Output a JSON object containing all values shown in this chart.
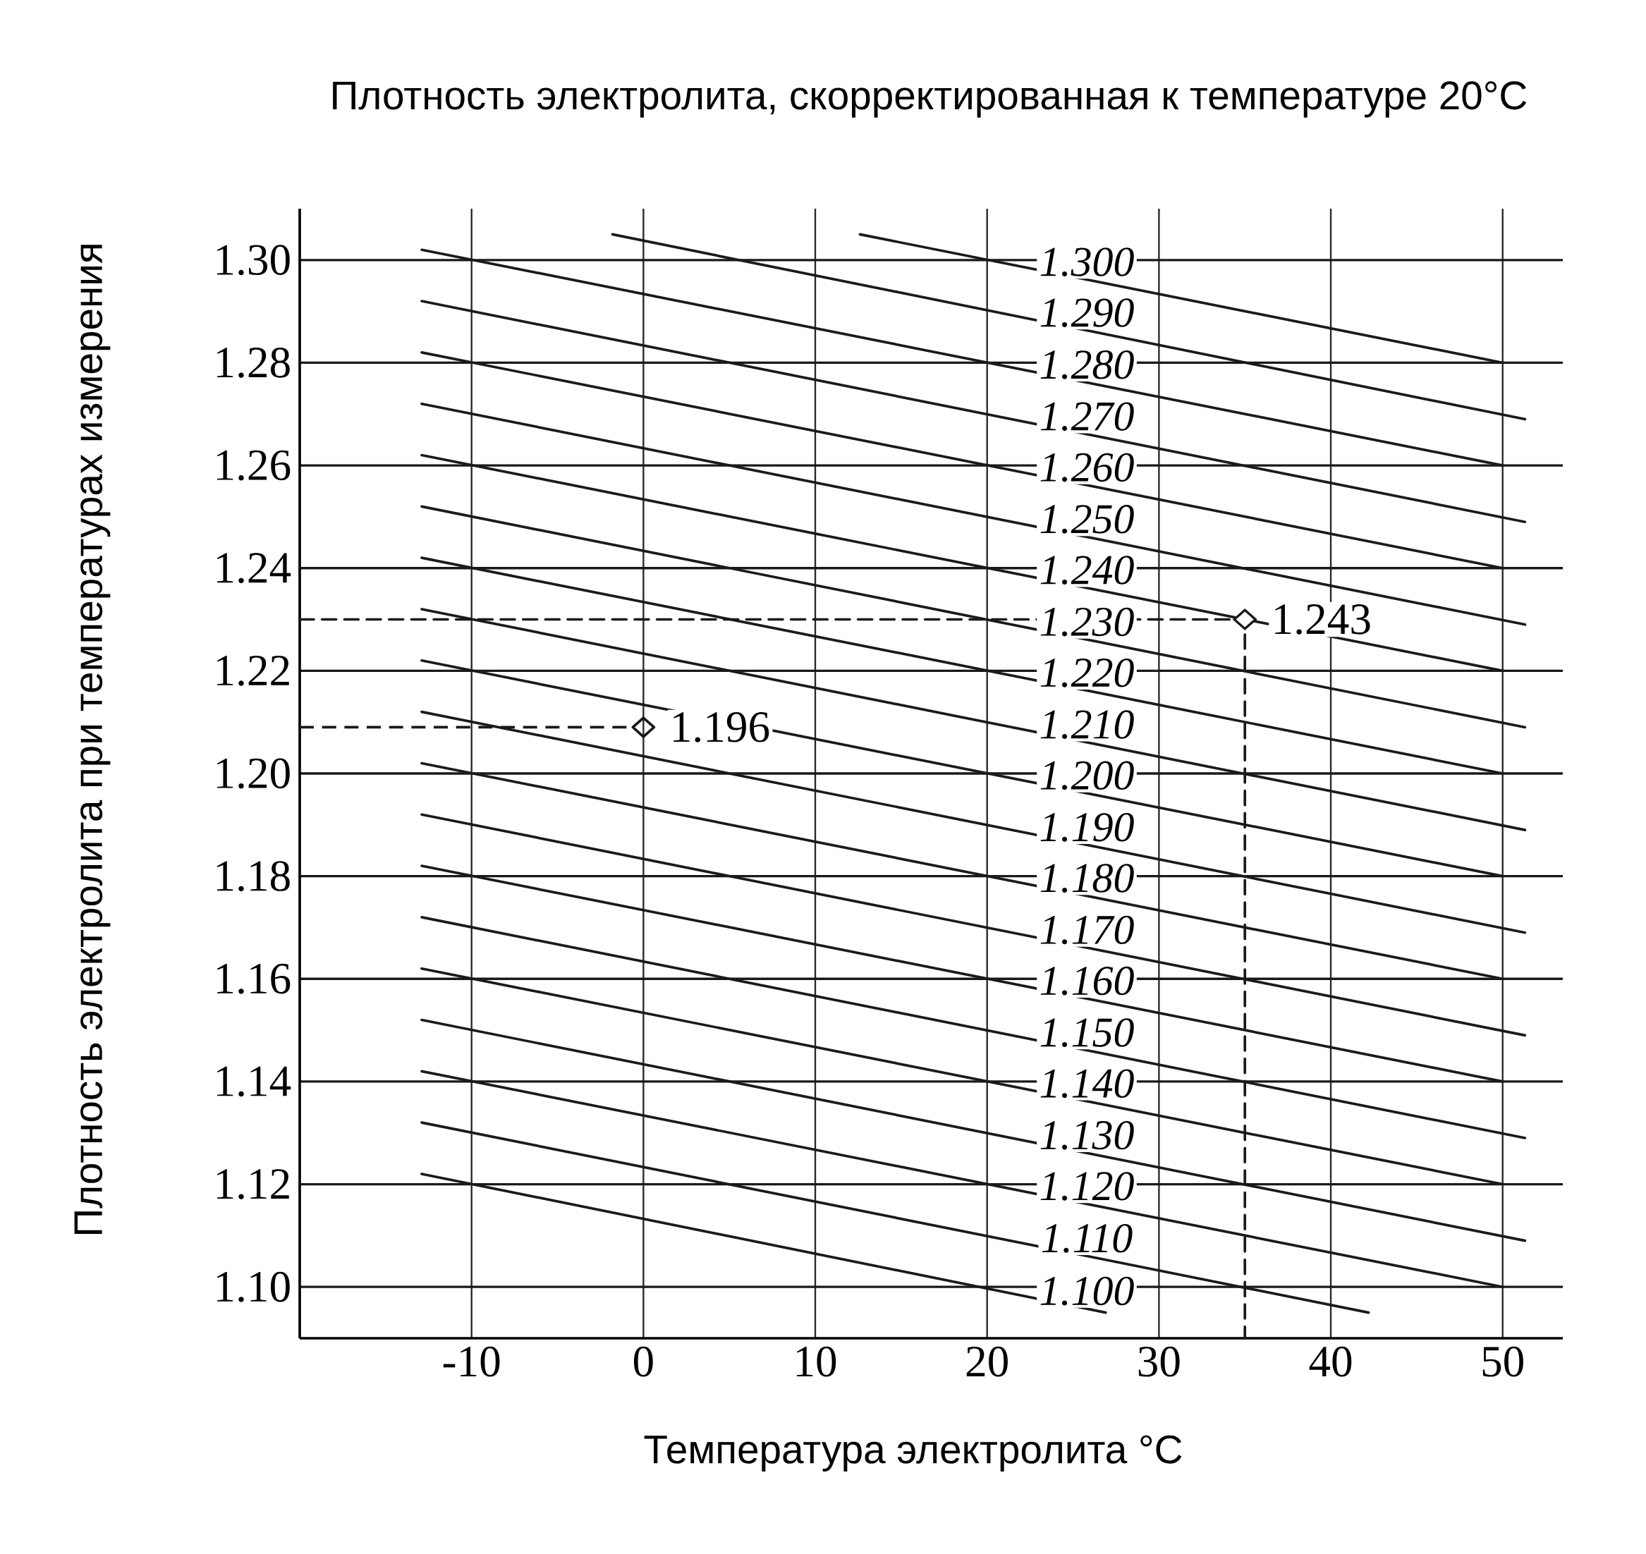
{
  "chart_data": {
    "type": "line",
    "title": "Плотность электролита, скорректированная к температуре 20°C",
    "xlabel": "Температура электролита °C",
    "ylabel": "Плотность электролита при температурах измерения",
    "xlim": [
      -20,
      53.5
    ],
    "ylim": [
      1.09,
      1.31
    ],
    "xticks": [
      -10,
      0,
      10,
      20,
      30,
      40,
      50
    ],
    "yticks": [
      {
        "value": 1.1,
        "label": "1.10"
      },
      1.12,
      1.14,
      1.16,
      1.18,
      {
        "value": 1.2,
        "label": "1.20"
      },
      1.22,
      1.24,
      1.26,
      1.28,
      {
        "value": 1.3,
        "label": "1.30"
      }
    ],
    "grid": true,
    "legend": false,
    "marker": "none",
    "line_style": "solid",
    "series": [
      {
        "name": "1.300",
        "color": "#1a1a1a",
        "x": [
          12.6,
          50
        ],
        "values": [
          1.305,
          1.28
        ]
      },
      {
        "name": "1.290",
        "color": "#1a1a1a",
        "x": [
          -1.8,
          51.3
        ],
        "values": [
          1.305,
          1.269
        ]
      },
      {
        "name": "1.280",
        "color": "#1a1a1a",
        "x": [
          -12.9,
          50
        ],
        "values": [
          1.302,
          1.26
        ]
      },
      {
        "name": "1.270",
        "color": "#1a1a1a",
        "x": [
          -12.9,
          51.3
        ],
        "values": [
          1.292,
          1.249
        ]
      },
      {
        "name": "1.260",
        "color": "#1a1a1a",
        "x": [
          -12.9,
          50
        ],
        "values": [
          1.282,
          1.24
        ]
      },
      {
        "name": "1.250",
        "color": "#1a1a1a",
        "x": [
          -12.9,
          51.3
        ],
        "values": [
          1.272,
          1.229
        ]
      },
      {
        "name": "1.240",
        "color": "#1a1a1a",
        "x": [
          -12.9,
          50
        ],
        "values": [
          1.262,
          1.22
        ]
      },
      {
        "name": "1.230",
        "color": "#1a1a1a",
        "x": [
          -12.9,
          51.3
        ],
        "values": [
          1.252,
          1.209
        ]
      },
      {
        "name": "1.220",
        "color": "#1a1a1a",
        "x": [
          -12.9,
          50
        ],
        "values": [
          1.242,
          1.2
        ]
      },
      {
        "name": "1.210",
        "color": "#1a1a1a",
        "x": [
          -12.9,
          51.3
        ],
        "values": [
          1.232,
          1.189
        ]
      },
      {
        "name": "1.200",
        "color": "#1a1a1a",
        "x": [
          -12.9,
          50
        ],
        "values": [
          1.222,
          1.18
        ]
      },
      {
        "name": "1.190",
        "color": "#1a1a1a",
        "x": [
          -12.9,
          51.3
        ],
        "values": [
          1.212,
          1.169
        ]
      },
      {
        "name": "1.180",
        "color": "#1a1a1a",
        "x": [
          -12.9,
          50
        ],
        "values": [
          1.202,
          1.16
        ]
      },
      {
        "name": "1.170",
        "color": "#1a1a1a",
        "x": [
          -12.9,
          51.3
        ],
        "values": [
          1.192,
          1.149
        ]
      },
      {
        "name": "1.160",
        "color": "#1a1a1a",
        "x": [
          -12.9,
          50
        ],
        "values": [
          1.182,
          1.14
        ]
      },
      {
        "name": "1.150",
        "color": "#1a1a1a",
        "x": [
          -12.9,
          51.3
        ],
        "values": [
          1.172,
          1.129
        ]
      },
      {
        "name": "1.140",
        "color": "#1a1a1a",
        "x": [
          -12.9,
          50
        ],
        "values": [
          1.162,
          1.12
        ]
      },
      {
        "name": "1.130",
        "color": "#1a1a1a",
        "x": [
          -12.9,
          51.3
        ],
        "values": [
          1.152,
          1.109
        ]
      },
      {
        "name": "1.120",
        "color": "#1a1a1a",
        "x": [
          -12.9,
          50
        ],
        "values": [
          1.142,
          1.1
        ]
      },
      {
        "name": "1.110",
        "color": "#1a1a1a",
        "x": [
          -12.9,
          42.2
        ],
        "values": [
          1.132,
          1.095
        ]
      },
      {
        "name": "1.100",
        "color": "#1a1a1a",
        "x": [
          -12.9,
          26.9
        ],
        "values": [
          1.122,
          1.095
        ]
      },
      {
        "color": "#1a1a1a",
        "line_style": "dashed",
        "x": [
          -20,
          35,
          35
        ],
        "values": [
          1.23,
          1.23,
          1.09
        ]
      }
    ],
    "annotations": [
      {
        "text": "1.196",
        "x": 0,
        "y": 1.209
      },
      {
        "text": "1.243",
        "x": 35,
        "y": 1.23
      }
    ]
  }
}
